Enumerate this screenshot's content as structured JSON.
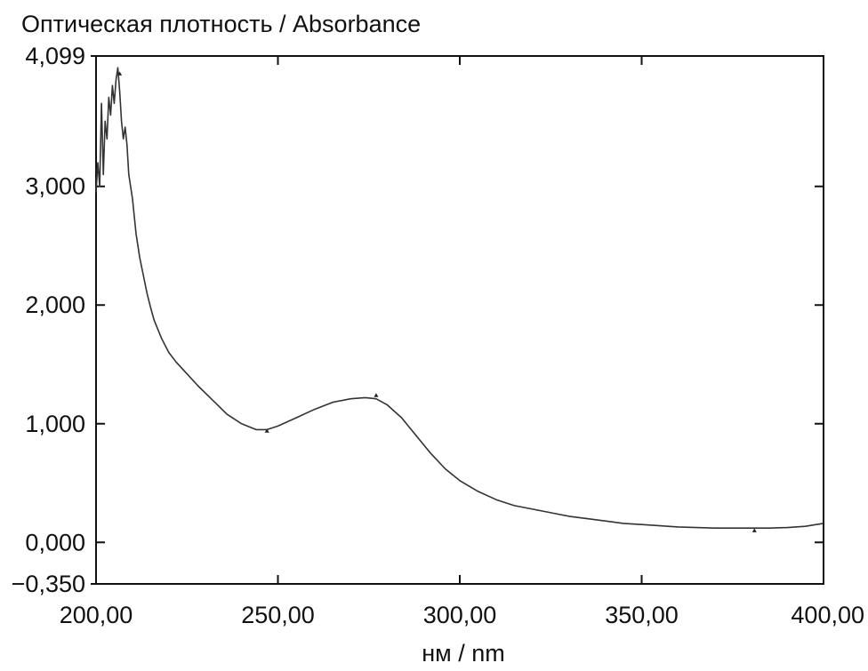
{
  "chart_data": {
    "type": "line",
    "ylabel": "Оптическая плотность / Absorbance",
    "xlabel": "нм / nm",
    "xlim": [
      200,
      400
    ],
    "ylim": [
      -0.35,
      4.099
    ],
    "x_ticks": [
      200,
      250,
      300,
      350,
      400
    ],
    "x_tick_labels": [
      "200,00",
      "250,00",
      "300,00",
      "350,00",
      "400,00"
    ],
    "y_ticks": [
      -0.35,
      0,
      1,
      2,
      3,
      4.099
    ],
    "y_tick_labels": [
      "−0,350",
      "0,000",
      "1,000",
      "2,000",
      "3,000",
      "4,099"
    ],
    "grid": false,
    "line_color": "#333333",
    "series": [
      {
        "x": [
          200,
          200.5,
          201,
          201.5,
          202,
          202.5,
          203,
          203.5,
          204,
          204.5,
          205,
          205.5,
          206,
          206.5,
          207,
          207.5,
          208,
          208.5,
          209,
          210,
          211,
          212,
          213,
          214,
          215,
          216,
          218,
          220,
          222,
          225,
          228,
          232,
          236,
          240,
          244,
          247,
          250,
          255,
          260,
          265,
          270,
          274,
          277,
          280,
          284,
          288,
          292,
          296,
          300,
          305,
          310,
          315,
          320,
          325,
          330,
          335,
          340,
          345,
          350,
          355,
          360,
          365,
          370,
          375,
          380,
          385,
          390,
          395,
          398,
          400
        ],
        "y": [
          2.95,
          3.2,
          3.0,
          3.7,
          3.1,
          3.55,
          3.4,
          3.75,
          3.6,
          3.85,
          3.7,
          3.9,
          4.0,
          3.8,
          3.55,
          3.4,
          3.5,
          3.35,
          3.1,
          2.9,
          2.6,
          2.4,
          2.25,
          2.1,
          1.98,
          1.87,
          1.72,
          1.6,
          1.52,
          1.42,
          1.32,
          1.2,
          1.08,
          1.0,
          0.95,
          0.95,
          0.98,
          1.05,
          1.12,
          1.18,
          1.21,
          1.22,
          1.21,
          1.16,
          1.05,
          0.9,
          0.75,
          0.62,
          0.52,
          0.43,
          0.36,
          0.31,
          0.28,
          0.25,
          0.22,
          0.2,
          0.18,
          0.16,
          0.15,
          0.14,
          0.13,
          0.125,
          0.12,
          0.12,
          0.12,
          0.12,
          0.125,
          0.135,
          0.15,
          0.16
        ]
      }
    ],
    "markers": [
      {
        "x": 206.5,
        "y": 3.95
      },
      {
        "x": 247,
        "y": 0.94
      },
      {
        "x": 277,
        "y": 1.24
      },
      {
        "x": 381,
        "y": 0.1
      }
    ]
  }
}
